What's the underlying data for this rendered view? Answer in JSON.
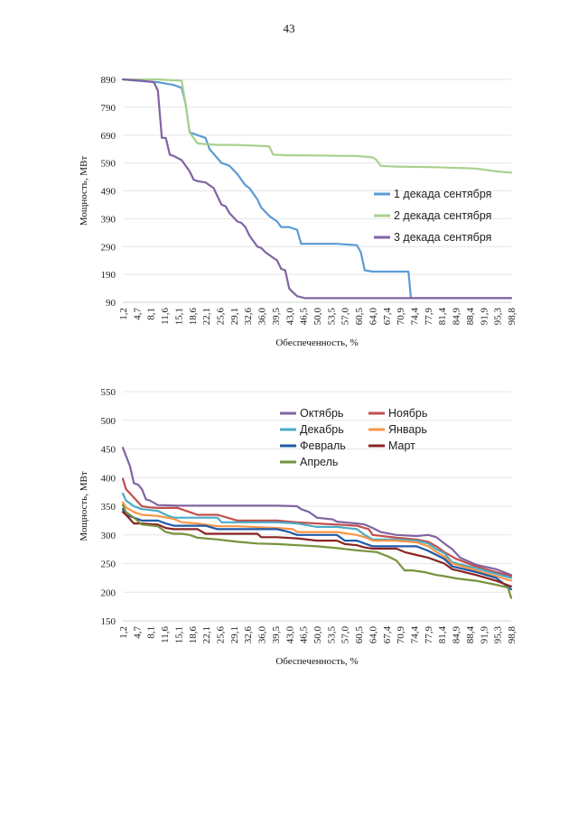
{
  "page": {
    "number": "43"
  },
  "chart_data": [
    {
      "type": "line",
      "xlabel": "Обеспеченность, %",
      "ylabel": "Мощность, МВт",
      "ylim": [
        90,
        890
      ],
      "yticks": [
        "890",
        "790",
        "690",
        "590",
        "490",
        "390",
        "290",
        "190",
        "90"
      ],
      "yticks_values": [
        890,
        790,
        690,
        590,
        490,
        390,
        290,
        190,
        90
      ],
      "xticks": [
        "1,2",
        "4,7",
        "8,1",
        "11,6",
        "15,1",
        "18,6",
        "22,1",
        "25,6",
        "29,1",
        "32,6",
        "36,0",
        "39,5",
        "43,0",
        "46,5",
        "50,0",
        "53,5",
        "57,0",
        "60,5",
        "64,0",
        "67,4",
        "70,9",
        "74,4",
        "77,9",
        "81,4",
        "84,9",
        "88,4",
        "91,9",
        "95,3",
        "98,8"
      ],
      "xlim": [
        1.2,
        98.8
      ],
      "legend_position": "right",
      "series": [
        {
          "name": "1 декада сентября",
          "color": "#5b9bd5",
          "x": [
            1.2,
            5,
            10,
            14,
            16,
            17,
            18,
            19,
            20,
            22,
            23,
            26,
            28,
            30,
            32,
            33,
            35,
            36,
            38,
            40,
            41,
            43,
            45,
            46,
            48,
            55,
            60,
            61,
            62,
            64,
            66,
            70,
            72,
            73,
            73.6,
            75,
            80,
            90,
            98.8
          ],
          "y": [
            890,
            885,
            880,
            870,
            860,
            800,
            700,
            695,
            690,
            680,
            640,
            590,
            580,
            550,
            510,
            500,
            460,
            430,
            400,
            380,
            360,
            360,
            350,
            300,
            300,
            300,
            295,
            270,
            205,
            200,
            200,
            200,
            200,
            200,
            105,
            105,
            105,
            105,
            105
          ]
        },
        {
          "name": "2 декада сентября",
          "color": "#a9d18e",
          "x": [
            1.2,
            10,
            16,
            17,
            18,
            19,
            20,
            25,
            30,
            38,
            39,
            42,
            50,
            60,
            64,
            65,
            66,
            68,
            70,
            80,
            90,
            95,
            98.8
          ],
          "y": [
            890,
            890,
            885,
            800,
            700,
            680,
            660,
            655,
            655,
            650,
            620,
            618,
            617,
            615,
            610,
            600,
            580,
            578,
            577,
            575,
            570,
            560,
            555
          ]
        },
        {
          "name": "3 декада сентября",
          "color": "#8064a2",
          "x": [
            1.2,
            6,
            9,
            10,
            11,
            12,
            13,
            14,
            16,
            18,
            19,
            20,
            22,
            24,
            25,
            26,
            27,
            28,
            30,
            31,
            32,
            33,
            35,
            36,
            37,
            38,
            40,
            41,
            42,
            43,
            44,
            45,
            47,
            50,
            60,
            70,
            80,
            90,
            98.8
          ],
          "y": [
            890,
            885,
            880,
            850,
            680,
            680,
            620,
            615,
            600,
            560,
            530,
            525,
            520,
            500,
            470,
            440,
            435,
            410,
            380,
            375,
            360,
            330,
            290,
            285,
            270,
            260,
            240,
            210,
            205,
            140,
            125,
            112,
            105,
            105,
            105,
            105,
            105,
            105,
            105
          ]
        }
      ]
    },
    {
      "type": "line",
      "xlabel": "Обеспеченность, %",
      "ylabel": "Мощность, МВт",
      "ylim": [
        150,
        550
      ],
      "yticks": [
        "550",
        "500",
        "450",
        "400",
        "350",
        "300",
        "250",
        "200",
        "150"
      ],
      "yticks_values": [
        550,
        500,
        450,
        400,
        350,
        300,
        250,
        200,
        150
      ],
      "xticks": [
        "1,2",
        "4,7",
        "8,1",
        "11,6",
        "15,1",
        "18,6",
        "22,1",
        "25,6",
        "29,1",
        "32,6",
        "36,0",
        "39,5",
        "43,0",
        "46,5",
        "50,0",
        "53,5",
        "57,0",
        "60,5",
        "64,0",
        "67,4",
        "70,9",
        "74,4",
        "77,9",
        "81,4",
        "84,9",
        "88,4",
        "91,9",
        "95,3",
        "98,8"
      ],
      "xlim": [
        1.2,
        98.8
      ],
      "legend_position": "top-right",
      "series": [
        {
          "name": "Октябрь",
          "color": "#8064a2",
          "x": [
            1.2,
            3,
            4,
            5,
            6,
            7,
            8,
            10,
            15,
            20,
            30,
            40,
            45,
            46,
            48,
            50,
            54,
            55,
            60,
            62,
            64,
            66,
            70,
            75,
            78,
            80,
            82,
            84,
            86,
            90,
            95,
            98.8
          ],
          "y": [
            452,
            420,
            390,
            388,
            380,
            362,
            360,
            352,
            351,
            351,
            351,
            351,
            350,
            345,
            340,
            330,
            327,
            323,
            320,
            318,
            312,
            305,
            300,
            298,
            300,
            296,
            285,
            275,
            260,
            248,
            240,
            230
          ]
        },
        {
          "name": "Ноябрь",
          "color": "#c0504d",
          "x": [
            1.2,
            2,
            4,
            6,
            8,
            10,
            15,
            18,
            20,
            25,
            30,
            40,
            45,
            50,
            55,
            60,
            63,
            64,
            70,
            75,
            78,
            80,
            82,
            85,
            90,
            95,
            98.8
          ],
          "y": [
            398,
            380,
            365,
            350,
            348,
            347,
            347,
            340,
            335,
            335,
            325,
            325,
            322,
            320,
            318,
            316,
            310,
            300,
            295,
            292,
            288,
            280,
            270,
            258,
            245,
            235,
            228
          ]
        },
        {
          "name": "Декабрь",
          "color": "#4bacc6",
          "x": [
            1.2,
            2,
            4,
            6,
            10,
            12,
            14,
            20,
            25,
            26,
            30,
            40,
            45,
            50,
            55,
            60,
            62,
            64,
            70,
            75,
            78,
            80,
            82,
            84,
            90,
            95,
            98.8
          ],
          "y": [
            372,
            360,
            350,
            345,
            342,
            335,
            330,
            330,
            330,
            322,
            322,
            322,
            320,
            314,
            314,
            310,
            300,
            292,
            292,
            290,
            285,
            275,
            268,
            252,
            242,
            232,
            225
          ]
        },
        {
          "name": "Январь",
          "color": "#f79646",
          "x": [
            1.2,
            2,
            4,
            6,
            10,
            14,
            16,
            20,
            25,
            30,
            40,
            44,
            45,
            50,
            55,
            60,
            62,
            64,
            70,
            75,
            78,
            80,
            82,
            84,
            90,
            95,
            98.8
          ],
          "y": [
            357,
            348,
            340,
            335,
            333,
            328,
            322,
            320,
            315,
            315,
            312,
            310,
            305,
            305,
            305,
            300,
            296,
            290,
            290,
            287,
            280,
            270,
            262,
            250,
            238,
            228,
            220
          ]
        },
        {
          "name": "Февраль",
          "color": "#1f5aa6",
          "x": [
            1.2,
            2,
            4,
            6,
            10,
            12,
            14,
            20,
            22,
            25,
            30,
            40,
            43,
            45,
            50,
            55,
            57,
            60,
            62,
            64,
            70,
            75,
            78,
            80,
            82,
            84,
            90,
            95,
            98.8
          ],
          "y": [
            345,
            335,
            330,
            325,
            325,
            320,
            316,
            316,
            316,
            310,
            310,
            310,
            305,
            300,
            300,
            300,
            290,
            290,
            285,
            280,
            280,
            280,
            272,
            265,
            258,
            245,
            235,
            225,
            205
          ]
        },
        {
          "name": "Март",
          "color": "#8b2424",
          "x": [
            1.2,
            2,
            4,
            6,
            10,
            12,
            14,
            20,
            22,
            25,
            30,
            35,
            36,
            40,
            45,
            50,
            55,
            57,
            60,
            62,
            64,
            70,
            72,
            75,
            78,
            80,
            82,
            84,
            90,
            95,
            98.8
          ],
          "y": [
            340,
            335,
            320,
            320,
            318,
            312,
            310,
            310,
            302,
            302,
            302,
            302,
            296,
            296,
            294,
            290,
            290,
            284,
            282,
            278,
            276,
            276,
            270,
            265,
            260,
            255,
            250,
            240,
            230,
            220,
            210
          ]
        },
        {
          "name": "Апрель",
          "color": "#77933c",
          "x": [
            1.2,
            2,
            4,
            6,
            10,
            12,
            14,
            16,
            18,
            20,
            25,
            30,
            35,
            40,
            45,
            50,
            55,
            60,
            65,
            68,
            70,
            72,
            74,
            77,
            80,
            82,
            85,
            90,
            95,
            98,
            98.8
          ],
          "y": [
            352,
            340,
            330,
            318,
            315,
            305,
            302,
            302,
            300,
            295,
            292,
            288,
            285,
            284,
            282,
            280,
            277,
            273,
            270,
            262,
            255,
            238,
            238,
            235,
            230,
            228,
            224,
            220,
            213,
            208,
            190
          ]
        }
      ]
    }
  ]
}
